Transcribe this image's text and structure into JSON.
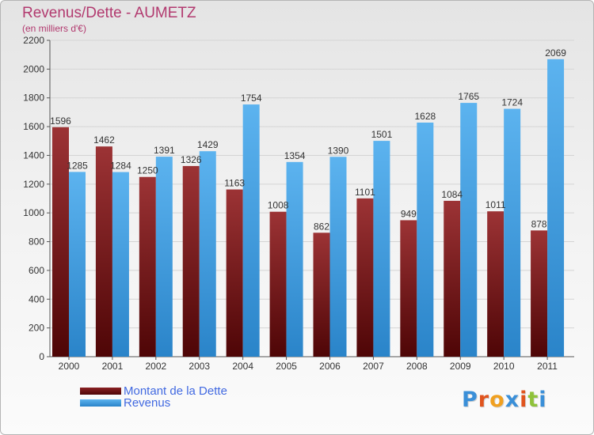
{
  "chart_data": {
    "type": "bar",
    "title": "Revenus/Dette - AUMETZ",
    "subtitle": "(en milliers d'€)",
    "categories": [
      "2000",
      "2001",
      "2002",
      "2003",
      "2004",
      "2005",
      "2006",
      "2007",
      "2008",
      "2009",
      "2010",
      "2011"
    ],
    "series": [
      {
        "name": "Montant de la Dette",
        "values": [
          1596,
          1462,
          1250,
          1326,
          1163,
          1008,
          862,
          1101,
          949,
          1084,
          1011,
          878
        ],
        "labels": [
          "1596",
          "1462",
          "1250",
          "1326",
          "1163",
          "1008",
          "862",
          "1101",
          "949",
          "1084",
          "1011",
          "878"
        ],
        "color": "#7a1518"
      },
      {
        "name": "Revenus",
        "values": [
          1285,
          1284,
          1391,
          1429,
          1754,
          1354,
          1390,
          1501,
          1628,
          1765,
          1724,
          2069
        ],
        "labels": [
          "1285",
          "1284",
          "1391",
          "1429",
          "1754",
          "1354",
          "1390",
          "1501",
          "1628",
          "1765",
          "1724",
          "2069"
        ],
        "color": "#3d9ce0"
      }
    ],
    "ylim": [
      0,
      2200
    ],
    "yticks": [
      0,
      200,
      400,
      600,
      800,
      1000,
      1200,
      1400,
      1600,
      1800,
      2000,
      2200
    ],
    "grid": true,
    "legend_position": "bottom-left"
  },
  "logo": {
    "text": "Proxiti",
    "letter_colors": [
      "#3a8fd8",
      "#e0541e",
      "#f0a020",
      "#3a8fd8",
      "#e0541e",
      "#8fc23a",
      "#3a8fd8"
    ]
  }
}
